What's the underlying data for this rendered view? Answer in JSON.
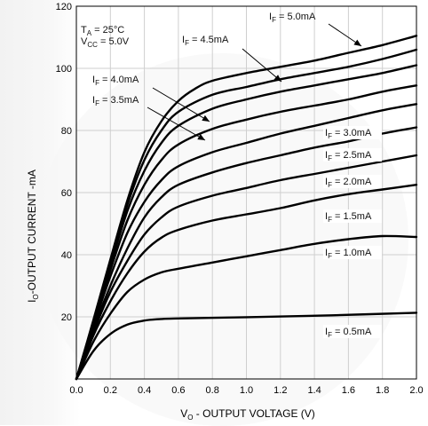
{
  "chart_data": {
    "type": "line",
    "xlabel": {
      "main": "V",
      "sub": "O",
      "rest": " - OUTPUT VOLTAGE (V)"
    },
    "ylabel": {
      "main": "I",
      "sub": "O",
      "rest": "-OUTPUT CURRENT -mA"
    },
    "xlim": [
      0,
      2.0
    ],
    "ylim": [
      0,
      120
    ],
    "xticks": [
      {
        "v": 0.0,
        "label": "0.0"
      },
      {
        "v": 0.2,
        "label": "0.2"
      },
      {
        "v": 0.4,
        "label": "0.4"
      },
      {
        "v": 0.6,
        "label": "0.6"
      },
      {
        "v": 0.8,
        "label": "0.8"
      },
      {
        "v": 1.0,
        "label": "1.0"
      },
      {
        "v": 1.2,
        "label": "1.2"
      },
      {
        "v": 1.4,
        "label": "1.4"
      },
      {
        "v": 1.6,
        "label": "1.6"
      },
      {
        "v": 1.8,
        "label": "1.8"
      },
      {
        "v": 2.0,
        "label": "2.0"
      }
    ],
    "yticks": [
      {
        "v": 20,
        "label": "20"
      },
      {
        "v": 40,
        "label": "40"
      },
      {
        "v": 60,
        "label": "60"
      },
      {
        "v": 80,
        "label": "80"
      },
      {
        "v": 100,
        "label": "100"
      },
      {
        "v": 120,
        "label": "120"
      }
    ],
    "grid": true,
    "conditions": [
      {
        "main": "T",
        "sub": "A",
        "rest": " = 25°C"
      },
      {
        "main": "V",
        "sub": "CC",
        "rest": " = 5.0V"
      }
    ],
    "series": [
      {
        "name": "IF = 0.5mA",
        "label": {
          "main": "I",
          "sub": "F",
          "rest": " = 0.5mA"
        },
        "points": [
          [
            0,
            0
          ],
          [
            0.1,
            9
          ],
          [
            0.2,
            14.5
          ],
          [
            0.3,
            17.5
          ],
          [
            0.4,
            18.8
          ],
          [
            0.5,
            19.3
          ],
          [
            0.6,
            19.5
          ],
          [
            1.0,
            19.9
          ],
          [
            1.5,
            20.5
          ],
          [
            2.0,
            21.3
          ]
        ]
      },
      {
        "name": "IF = 1.0mA",
        "label": {
          "main": "I",
          "sub": "F",
          "rest": " = 1.0mA"
        },
        "points": [
          [
            0,
            0
          ],
          [
            0.1,
            12
          ],
          [
            0.2,
            21
          ],
          [
            0.3,
            28
          ],
          [
            0.4,
            32
          ],
          [
            0.5,
            34.3
          ],
          [
            0.6,
            35.5
          ],
          [
            0.8,
            37.5
          ],
          [
            1.0,
            39.5
          ],
          [
            1.2,
            41.5
          ],
          [
            1.4,
            43.5
          ],
          [
            1.6,
            45
          ],
          [
            1.8,
            46
          ],
          [
            2.0,
            45.7
          ]
        ]
      },
      {
        "name": "IF = 1.5mA",
        "label": {
          "main": "I",
          "sub": "F",
          "rest": " = 1.5mA"
        },
        "points": [
          [
            0,
            0
          ],
          [
            0.1,
            14
          ],
          [
            0.2,
            25
          ],
          [
            0.3,
            34
          ],
          [
            0.4,
            41
          ],
          [
            0.5,
            45.5
          ],
          [
            0.6,
            48
          ],
          [
            0.8,
            51
          ],
          [
            1.0,
            53
          ],
          [
            1.2,
            55
          ],
          [
            1.4,
            57.5
          ],
          [
            1.6,
            59.5
          ],
          [
            1.8,
            61
          ],
          [
            2.0,
            62.5
          ]
        ]
      },
      {
        "name": "IF = 2.0mA",
        "label": {
          "main": "I",
          "sub": "F",
          "rest": " = 2.0mA"
        },
        "points": [
          [
            0,
            0
          ],
          [
            0.1,
            15
          ],
          [
            0.2,
            28
          ],
          [
            0.3,
            38
          ],
          [
            0.4,
            46.5
          ],
          [
            0.5,
            52
          ],
          [
            0.6,
            55.5
          ],
          [
            0.8,
            59
          ],
          [
            1.0,
            61.5
          ],
          [
            1.2,
            64
          ],
          [
            1.4,
            66
          ],
          [
            1.6,
            68
          ],
          [
            1.8,
            70
          ],
          [
            2.0,
            72
          ]
        ]
      },
      {
        "name": "IF = 2.5mA",
        "label": {
          "main": "I",
          "sub": "F",
          "rest": " = 2.5mA"
        },
        "points": [
          [
            0,
            0
          ],
          [
            0.1,
            16
          ],
          [
            0.2,
            30
          ],
          [
            0.3,
            42
          ],
          [
            0.4,
            52
          ],
          [
            0.5,
            58.5
          ],
          [
            0.6,
            62.5
          ],
          [
            0.8,
            66.5
          ],
          [
            1.0,
            69.5
          ],
          [
            1.2,
            72
          ],
          [
            1.4,
            74.5
          ],
          [
            1.6,
            76.5
          ],
          [
            1.8,
            79
          ],
          [
            2.0,
            81
          ]
        ]
      },
      {
        "name": "IF = 3.0mA",
        "label": {
          "main": "I",
          "sub": "F",
          "rest": " = 3.0mA"
        },
        "points": [
          [
            0,
            0
          ],
          [
            0.1,
            17
          ],
          [
            0.2,
            33
          ],
          [
            0.3,
            47
          ],
          [
            0.4,
            57
          ],
          [
            0.5,
            64
          ],
          [
            0.6,
            68.5
          ],
          [
            0.8,
            73
          ],
          [
            1.0,
            76
          ],
          [
            1.2,
            79
          ],
          [
            1.4,
            81.5
          ],
          [
            1.6,
            84
          ],
          [
            1.8,
            86.5
          ],
          [
            2.0,
            88.5
          ]
        ]
      },
      {
        "name": "IF = 3.5mA",
        "label": {
          "main": "I",
          "sub": "F",
          "rest": " = 3.5mA"
        },
        "points": [
          [
            0,
            0
          ],
          [
            0.1,
            17.5
          ],
          [
            0.2,
            35
          ],
          [
            0.3,
            51
          ],
          [
            0.4,
            62.5
          ],
          [
            0.5,
            70.5
          ],
          [
            0.6,
            75.5
          ],
          [
            0.8,
            80.5
          ],
          [
            1.0,
            83.5
          ],
          [
            1.2,
            86
          ],
          [
            1.4,
            88
          ],
          [
            1.6,
            90
          ],
          [
            1.8,
            92.5
          ],
          [
            2.0,
            94.5
          ]
        ]
      },
      {
        "name": "IF = 4.0mA",
        "label": {
          "main": "I",
          "sub": "F",
          "rest": " = 4.0mA"
        },
        "points": [
          [
            0,
            0
          ],
          [
            0.1,
            18
          ],
          [
            0.2,
            36.5
          ],
          [
            0.3,
            54
          ],
          [
            0.4,
            67
          ],
          [
            0.5,
            76
          ],
          [
            0.6,
            81.5
          ],
          [
            0.8,
            87
          ],
          [
            1.0,
            90
          ],
          [
            1.2,
            92.5
          ],
          [
            1.4,
            94.5
          ],
          [
            1.6,
            96.5
          ],
          [
            1.8,
            98.5
          ],
          [
            2.0,
            101
          ]
        ]
      },
      {
        "name": "IF = 4.5mA",
        "label": {
          "main": "I",
          "sub": "F",
          "rest": " = 4.5mA"
        },
        "points": [
          [
            0,
            0
          ],
          [
            0.1,
            18.5
          ],
          [
            0.2,
            37.5
          ],
          [
            0.3,
            56
          ],
          [
            0.4,
            70.5
          ],
          [
            0.5,
            80
          ],
          [
            0.6,
            86
          ],
          [
            0.8,
            91.5
          ],
          [
            1.0,
            94
          ],
          [
            1.2,
            96.5
          ],
          [
            1.4,
            98.5
          ],
          [
            1.6,
            100.5
          ],
          [
            1.8,
            103
          ],
          [
            2.0,
            106
          ]
        ]
      },
      {
        "name": "IF = 5.0mA",
        "label": {
          "main": "I",
          "sub": "F",
          "rest": " = 5.0mA"
        },
        "points": [
          [
            0,
            0
          ],
          [
            0.1,
            19
          ],
          [
            0.2,
            38.5
          ],
          [
            0.3,
            57.5
          ],
          [
            0.4,
            73
          ],
          [
            0.5,
            83
          ],
          [
            0.6,
            89.5
          ],
          [
            0.7,
            93.5
          ],
          [
            0.8,
            96
          ],
          [
            1.0,
            98.5
          ],
          [
            1.2,
            100.5
          ],
          [
            1.4,
            102.5
          ],
          [
            1.6,
            105
          ],
          [
            1.8,
            107.5
          ],
          [
            2.0,
            110.5
          ]
        ]
      }
    ]
  }
}
